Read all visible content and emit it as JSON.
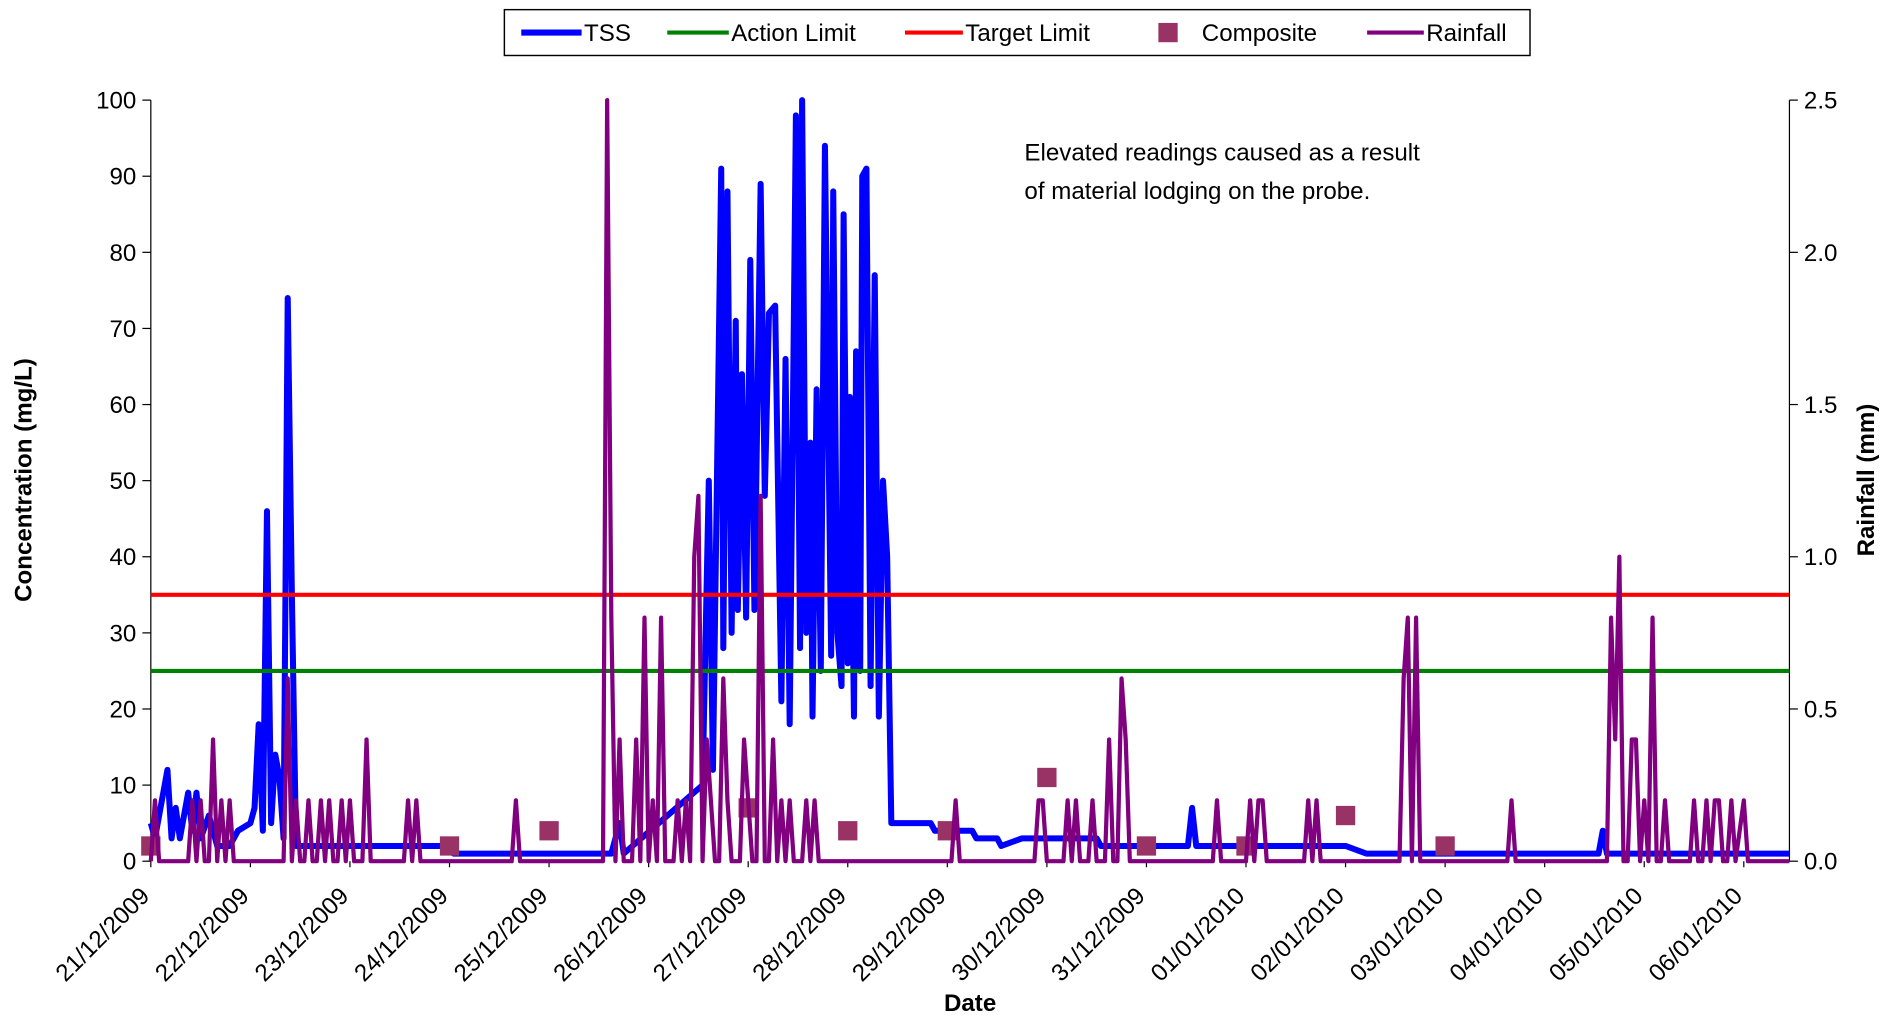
{
  "chart_data": {
    "type": "line",
    "xlabel": "Date",
    "ylabel": "Concentration (mg/L)",
    "y2label": "Rainfall (mm)",
    "annotation": [
      "Elevated readings caused as a result",
      "of material lodging on the probe."
    ],
    "legend": "top",
    "xlim": [
      "2009-12-21T00:00",
      "2010-01-06T11:00"
    ],
    "xticks": [
      {
        "value": "2009-12-21T00:00",
        "label": "21/12/2009"
      },
      {
        "value": "2009-12-22T00:00",
        "label": "22/12/2009"
      },
      {
        "value": "2009-12-23T00:00",
        "label": "23/12/2009"
      },
      {
        "value": "2009-12-24T00:00",
        "label": "24/12/2009"
      },
      {
        "value": "2009-12-25T00:00",
        "label": "25/12/2009"
      },
      {
        "value": "2009-12-26T00:00",
        "label": "26/12/2009"
      },
      {
        "value": "2009-12-27T00:00",
        "label": "27/12/2009"
      },
      {
        "value": "2009-12-28T00:00",
        "label": "28/12/2009"
      },
      {
        "value": "2009-12-29T00:00",
        "label": "29/12/2009"
      },
      {
        "value": "2009-12-30T00:00",
        "label": "30/12/2009"
      },
      {
        "value": "2009-12-31T00:00",
        "label": "31/12/2009"
      },
      {
        "value": "2010-01-01T00:00",
        "label": "01/01/2010"
      },
      {
        "value": "2010-01-02T00:00",
        "label": "02/01/2010"
      },
      {
        "value": "2010-01-03T00:00",
        "label": "03/01/2010"
      },
      {
        "value": "2010-01-04T00:00",
        "label": "04/01/2010"
      },
      {
        "value": "2010-01-05T00:00",
        "label": "05/01/2010"
      },
      {
        "value": "2010-01-06T00:00",
        "label": "06/01/2010"
      }
    ],
    "ylim": [
      0,
      100
    ],
    "yticks": [
      0,
      10,
      20,
      30,
      40,
      50,
      60,
      70,
      80,
      90,
      100
    ],
    "y2lim": [
      0,
      2.5
    ],
    "y2ticks": [
      {
        "value": 0,
        "label": "0.0"
      },
      {
        "value": 0.5,
        "label": "0.5"
      },
      {
        "value": 1,
        "label": "1.0"
      },
      {
        "value": 1.5,
        "label": "1.5"
      },
      {
        "value": 2,
        "label": "2.0"
      },
      {
        "value": 2.5,
        "label": "2.5"
      }
    ],
    "series": [
      {
        "name": "TSS",
        "type": "line",
        "color": "#0000ff",
        "x": [
          "2009-12-21T00:00",
          "2009-12-21T01:00",
          "2009-12-21T04:00",
          "2009-12-21T05:00",
          "2009-12-21T06:00",
          "2009-12-21T07:00",
          "2009-12-21T09:00",
          "2009-12-21T10:00",
          "2009-12-21T11:00",
          "2009-12-21T12:00",
          "2009-12-21T14:00",
          "2009-12-21T16:00",
          "2009-12-21T19:00",
          "2009-12-21T21:00",
          "2009-12-22T00:00",
          "2009-12-22T01:00",
          "2009-12-22T02:00",
          "2009-12-22T03:00",
          "2009-12-22T04:00",
          "2009-12-22T05:00",
          "2009-12-22T06:00",
          "2009-12-22T07:00",
          "2009-12-22T08:00",
          "2009-12-22T09:00",
          "2009-12-22T10:00",
          "2009-12-22T11:00",
          "2009-12-24T00:00",
          "2009-12-24T01:00",
          "2009-12-25T15:00",
          "2009-12-25T17:00",
          "2009-12-25T18:00",
          "2009-12-26T13:00",
          "2009-12-26T14:30",
          "2009-12-26T15:30",
          "2009-12-26T17:30",
          "2009-12-26T18:00",
          "2009-12-26T19:00",
          "2009-12-26T20:00",
          "2009-12-26T21:00",
          "2009-12-26T21:30",
          "2009-12-26T22:30",
          "2009-12-26T23:30",
          "2009-12-27T00:30",
          "2009-12-27T01:30",
          "2009-12-27T03:00",
          "2009-12-27T04:00",
          "2009-12-27T05:00",
          "2009-12-27T06:30",
          "2009-12-27T08:00",
          "2009-12-27T09:00",
          "2009-12-27T10:00",
          "2009-12-27T11:00",
          "2009-12-27T11:30",
          "2009-12-27T12:30",
          "2009-12-27T13:00",
          "2009-12-27T14:00",
          "2009-12-27T15:00",
          "2009-12-27T15:30",
          "2009-12-27T16:30",
          "2009-12-27T17:30",
          "2009-12-27T18:30",
          "2009-12-27T20:00",
          "2009-12-27T20:30",
          "2009-12-27T21:30",
          "2009-12-27T22:30",
          "2009-12-27T23:00",
          "2009-12-28T00:00",
          "2009-12-28T00:30",
          "2009-12-28T01:30",
          "2009-12-28T02:00",
          "2009-12-28T03:00",
          "2009-12-28T03:30",
          "2009-12-28T04:30",
          "2009-12-28T05:30",
          "2009-12-28T06:30",
          "2009-12-28T07:30",
          "2009-12-28T08:30",
          "2009-12-28T09:30",
          "2009-12-28T10:30",
          "2009-12-28T20:00",
          "2009-12-28T21:00",
          "2009-12-29T06:00",
          "2009-12-29T07:00",
          "2009-12-29T12:00",
          "2009-12-29T13:00",
          "2009-12-29T18:00",
          "2009-12-30T12:00",
          "2009-12-30T13:00",
          "2009-12-31T10:00",
          "2009-12-31T11:00",
          "2009-12-31T12:00",
          "2010-01-02T00:00",
          "2010-01-02T05:00",
          "2010-01-04T13:00",
          "2010-01-04T14:00",
          "2010-01-04T15:00",
          "2010-01-06T11:00"
        ],
        "values": [
          5,
          3,
          12,
          3,
          7,
          3,
          9,
          4,
          9,
          3,
          6,
          2,
          2,
          4,
          5,
          7,
          18,
          4,
          46,
          5,
          14,
          11,
          3,
          74,
          35,
          2,
          2,
          1,
          1,
          5,
          1,
          10,
          50,
          12,
          91,
          28,
          88,
          30,
          71,
          33,
          64,
          32,
          79,
          33,
          89,
          48,
          72,
          73,
          21,
          66,
          18,
          71,
          98,
          28,
          100,
          30,
          55,
          19,
          62,
          25,
          94,
          27,
          88,
          30,
          23,
          85,
          26,
          61,
          19,
          67,
          25,
          90,
          91,
          23,
          77,
          19,
          50,
          40,
          5,
          5,
          4,
          4,
          3,
          3,
          2,
          3,
          3,
          2,
          2,
          7,
          2,
          2,
          1,
          1,
          4,
          1,
          1
        ]
      },
      {
        "name": "Action Limit",
        "type": "hline",
        "color": "#008000",
        "value": 25
      },
      {
        "name": "Target Limit",
        "type": "hline",
        "color": "#ff0000",
        "value": 35
      },
      {
        "name": "Composite",
        "type": "scatter",
        "color": "#993366",
        "x": [
          "2009-12-21T00:00",
          "2009-12-24T00:00",
          "2009-12-25T00:00",
          "2009-12-27T00:00",
          "2009-12-28T00:00",
          "2009-12-29T00:00",
          "2009-12-30T00:00",
          "2009-12-31T00:00",
          "2010-01-01T00:00",
          "2010-01-02T00:00",
          "2010-01-03T00:00"
        ],
        "values": [
          2,
          2,
          4,
          7,
          4,
          4,
          11,
          2,
          2,
          6,
          2
        ]
      },
      {
        "name": "Rainfall",
        "type": "line",
        "axis": "y2",
        "color": "#800080",
        "x": [
          "2009-12-21T00:00",
          "2009-12-21T01:00",
          "2009-12-21T02:00",
          "2009-12-21T09:00",
          "2009-12-21T10:00",
          "2009-12-21T11:00",
          "2009-12-21T12:00",
          "2009-12-21T13:00",
          "2009-12-21T14:00",
          "2009-12-21T15:00",
          "2009-12-21T16:00",
          "2009-12-21T17:00",
          "2009-12-21T18:00",
          "2009-12-21T19:00",
          "2009-12-21T20:00",
          "2009-12-22T08:00",
          "2009-12-22T09:00",
          "2009-12-22T10:00",
          "2009-12-22T11:00",
          "2009-12-22T12:00",
          "2009-12-22T13:00",
          "2009-12-22T14:00",
          "2009-12-22T15:00",
          "2009-12-22T16:00",
          "2009-12-22T17:00",
          "2009-12-22T18:00",
          "2009-12-22T19:00",
          "2009-12-22T20:00",
          "2009-12-22T21:00",
          "2009-12-22T22:00",
          "2009-12-22T23:00",
          "2009-12-23T00:00",
          "2009-12-23T01:00",
          "2009-12-23T03:00",
          "2009-12-23T04:00",
          "2009-12-23T05:00",
          "2009-12-23T13:00",
          "2009-12-23T14:00",
          "2009-12-23T15:00",
          "2009-12-23T16:00",
          "2009-12-23T17:00",
          "2009-12-24T15:00",
          "2009-12-24T16:00",
          "2009-12-24T17:00",
          "2009-12-25T13:00",
          "2009-12-25T14:00",
          "2009-12-25T15:00",
          "2009-12-25T16:00",
          "2009-12-25T17:00",
          "2009-12-25T18:00",
          "2009-12-25T20:00",
          "2009-12-25T21:00",
          "2009-12-25T22:00",
          "2009-12-25T23:00",
          "2009-12-26T00:00",
          "2009-12-26T01:00",
          "2009-12-26T02:00",
          "2009-12-26T03:00",
          "2009-12-26T04:00",
          "2009-12-26T06:00",
          "2009-12-26T07:00",
          "2009-12-26T08:00",
          "2009-12-26T09:00",
          "2009-12-26T10:00",
          "2009-12-26T11:00",
          "2009-12-26T12:00",
          "2009-12-26T13:00",
          "2009-12-26T14:00",
          "2009-12-26T15:00",
          "2009-12-26T16:00",
          "2009-12-26T17:00",
          "2009-12-26T18:00",
          "2009-12-26T19:00",
          "2009-12-26T20:00",
          "2009-12-26T22:00",
          "2009-12-26T23:00",
          "2009-12-27T00:00",
          "2009-12-27T01:00",
          "2009-12-27T02:00",
          "2009-12-27T03:00",
          "2009-12-27T04:00",
          "2009-12-27T05:00",
          "2009-12-27T06:00",
          "2009-12-27T07:00",
          "2009-12-27T08:00",
          "2009-12-27T09:00",
          "2009-12-27T10:00",
          "2009-12-27T11:00",
          "2009-12-27T13:00",
          "2009-12-27T14:00",
          "2009-12-27T15:00",
          "2009-12-27T16:00",
          "2009-12-27T17:00",
          "2009-12-29T01:00",
          "2009-12-29T02:00",
          "2009-12-29T03:00",
          "2009-12-29T21:00",
          "2009-12-29T22:00",
          "2009-12-29T23:00",
          "2009-12-30T00:00",
          "2009-12-30T04:00",
          "2009-12-30T05:00",
          "2009-12-30T06:00",
          "2009-12-30T07:00",
          "2009-12-30T08:00",
          "2009-12-30T10:00",
          "2009-12-30T11:00",
          "2009-12-30T12:00",
          "2009-12-30T14:00",
          "2009-12-30T15:00",
          "2009-12-30T16:00",
          "2009-12-30T17:00",
          "2009-12-30T18:00",
          "2009-12-30T19:00",
          "2009-12-30T20:00",
          "2009-12-31T16:00",
          "2009-12-31T17:00",
          "2009-12-31T18:00",
          "2010-01-01T00:00",
          "2010-01-01T01:00",
          "2010-01-01T02:00",
          "2010-01-01T03:00",
          "2010-01-01T04:00",
          "2010-01-01T05:00",
          "2010-01-01T14:00",
          "2010-01-01T15:00",
          "2010-01-01T16:00",
          "2010-01-01T17:00",
          "2010-01-01T18:00",
          "2010-01-02T13:00",
          "2010-01-02T14:00",
          "2010-01-02T15:00",
          "2010-01-02T16:00",
          "2010-01-02T17:00",
          "2010-01-02T18:00",
          "2010-01-03T15:00",
          "2010-01-03T16:00",
          "2010-01-03T17:00",
          "2010-01-04T15:00",
          "2010-01-04T16:00",
          "2010-01-04T17:00",
          "2010-01-04T18:00",
          "2010-01-04T19:00",
          "2010-01-04T20:00",
          "2010-01-04T21:00",
          "2010-01-04T22:00",
          "2010-01-04T23:00",
          "2010-01-05T00:00",
          "2010-01-05T01:00",
          "2010-01-05T02:00",
          "2010-01-05T03:00",
          "2010-01-05T04:00",
          "2010-01-05T05:00",
          "2010-01-05T06:00",
          "2010-01-05T11:00",
          "2010-01-05T12:00",
          "2010-01-05T13:00",
          "2010-01-05T14:00",
          "2010-01-05T15:00",
          "2010-01-05T16:00",
          "2010-01-05T17:00",
          "2010-01-05T18:00",
          "2010-01-05T19:00",
          "2010-01-05T20:00",
          "2010-01-05T21:00",
          "2010-01-05T22:00",
          "2010-01-06T00:00",
          "2010-01-06T01:00",
          "2010-01-06T11:00"
        ],
        "values": [
          0,
          0.2,
          0,
          0,
          0.2,
          0,
          0.2,
          0,
          0,
          0.4,
          0,
          0.2,
          0,
          0.2,
          0,
          0,
          0.6,
          0,
          0.2,
          0,
          0,
          0.2,
          0,
          0,
          0.2,
          0,
          0.2,
          0,
          0,
          0.2,
          0,
          0.2,
          0,
          0,
          0.4,
          0,
          0,
          0.2,
          0,
          0.2,
          0,
          0,
          0.2,
          0,
          0,
          2.5,
          0.8,
          0,
          0.4,
          0,
          0,
          0.4,
          0,
          0.8,
          0,
          0.2,
          0,
          0.8,
          0,
          0,
          0.2,
          0,
          0.2,
          0,
          1.0,
          1.2,
          0,
          0.4,
          0.2,
          0,
          0,
          0.6,
          0.2,
          0,
          0,
          0.4,
          0.2,
          0,
          0,
          1.2,
          0,
          0,
          0.4,
          0,
          0.2,
          0,
          0.2,
          0,
          0,
          0.2,
          0,
          0.2,
          0,
          0,
          0.2,
          0,
          0,
          0.2,
          0.2,
          0,
          0,
          0.2,
          0,
          0.2,
          0,
          0,
          0.2,
          0,
          0,
          0.4,
          0,
          0,
          0.6,
          0.4,
          0,
          0,
          0.2,
          0,
          0,
          0.2,
          0,
          0.2,
          0.2,
          0,
          0,
          0.2,
          0,
          0.2,
          0,
          0,
          0.6,
          0.8,
          0,
          0.8,
          0,
          0,
          0.2,
          0,
          0,
          0.8,
          0.4,
          1.0,
          0,
          0,
          0.4,
          0.4,
          0,
          0.2,
          0,
          0.8,
          0,
          0,
          0.2,
          0,
          0,
          0.2,
          0,
          0,
          0.2,
          0,
          0.2,
          0.2,
          0,
          0,
          0.2,
          0,
          0.2,
          0,
          0
        ]
      }
    ]
  }
}
